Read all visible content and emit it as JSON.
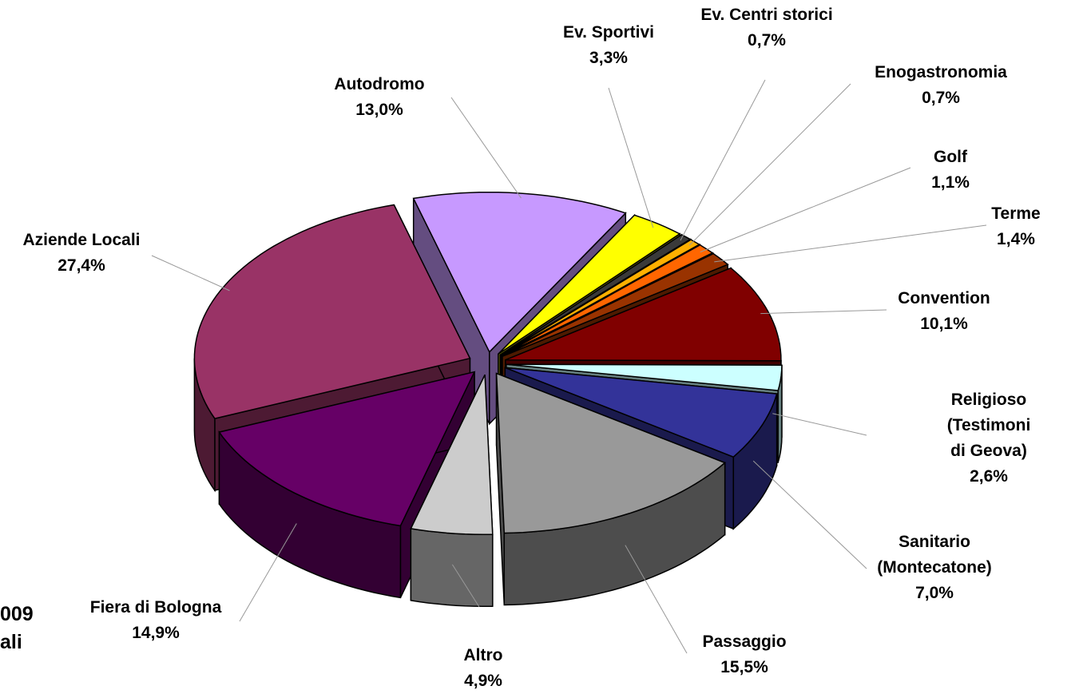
{
  "chart_data": {
    "type": "pie3d",
    "categories": [
      "Autodromo",
      "Ev. Sportivi",
      "Ev. Centri storici",
      "Enogastronomia",
      "Golf",
      "Terme",
      "Convention",
      "Religioso\n(Testimoni di Geova)",
      "Sanitario\n(Montecatone)",
      "Passaggio",
      "Altro",
      "Fiera di Bologna",
      "Aziende Locali"
    ],
    "values": [
      13.0,
      3.3,
      0.7,
      0.7,
      1.1,
      1.4,
      10.1,
      2.6,
      7.0,
      15.5,
      4.9,
      14.9,
      27.4
    ],
    "value_labels": [
      "13,0%",
      "3,3%",
      "0,7%",
      "0,7%",
      "1,1%",
      "1,4%",
      "10,1%",
      "2,6%",
      "7,0%",
      "15,5%",
      "4,9%",
      "14,9%",
      "27,4%"
    ],
    "colors": [
      "#c799ff",
      "#ffff00",
      "#3a3a3a",
      "#ffb000",
      "#ff6600",
      "#993300",
      "#800000",
      "#ccffff",
      "#333399",
      "#999999",
      "#cccccc",
      "#660066",
      "#993366"
    ],
    "annotations": [
      "009",
      "ali"
    ]
  }
}
